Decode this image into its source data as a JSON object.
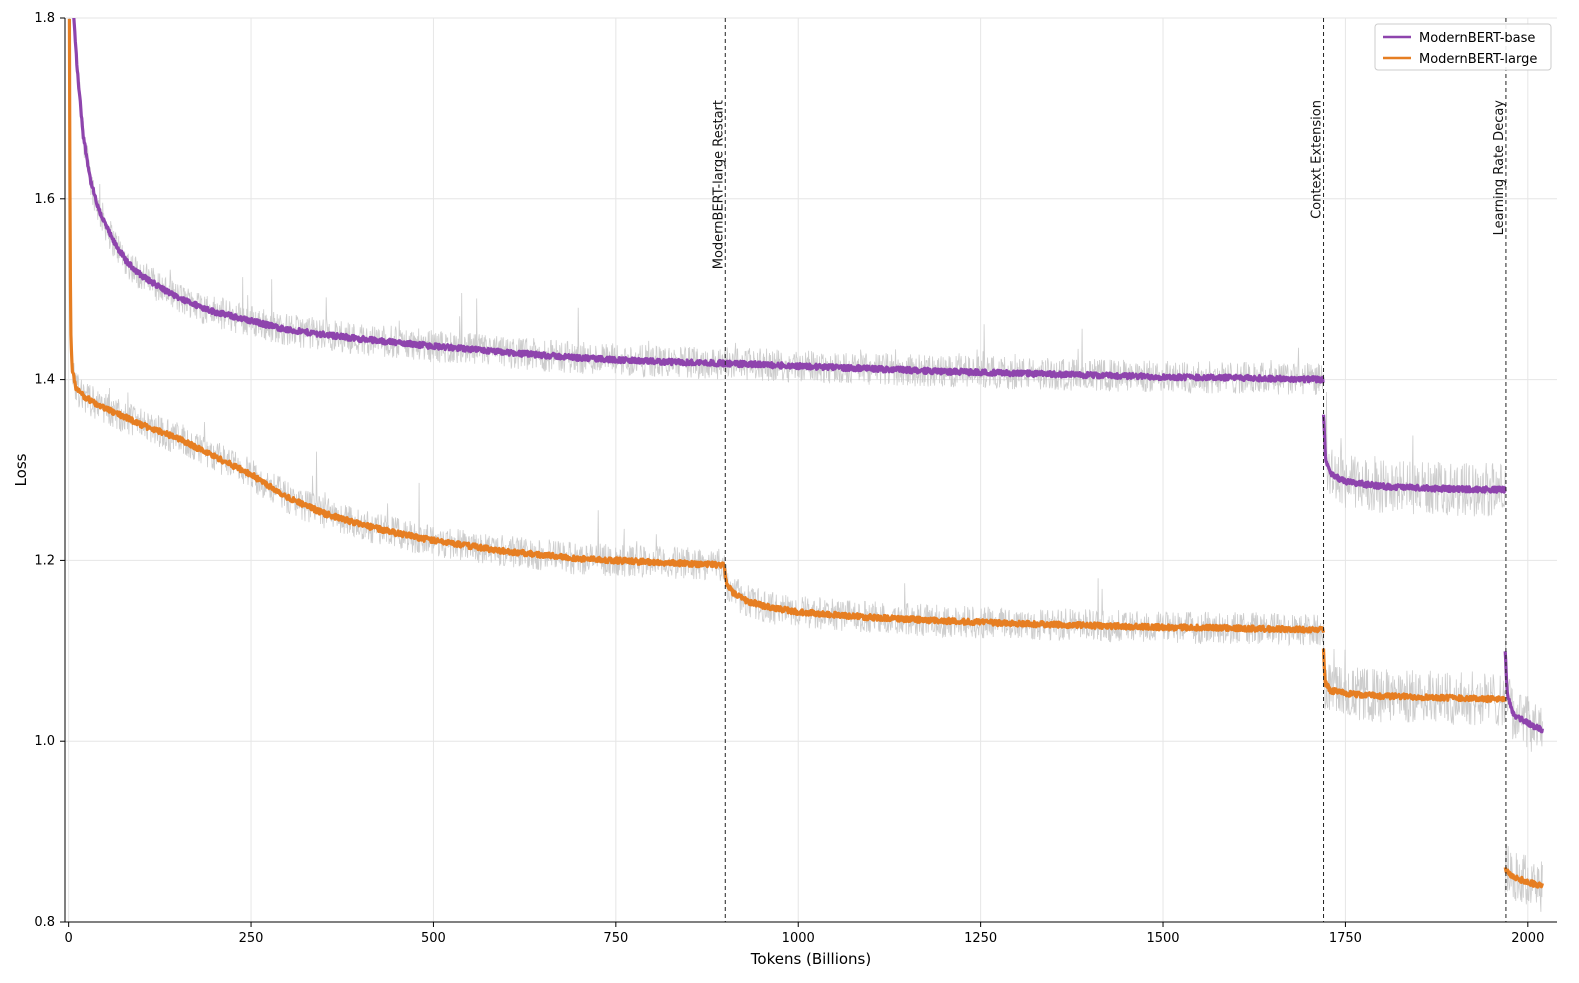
{
  "chart_data": {
    "type": "line",
    "xlabel": "Tokens (Billions)",
    "ylabel": "Loss",
    "xlim": [
      -5,
      2040
    ],
    "ylim": [
      0.8,
      1.8
    ],
    "xticks": [
      0,
      250,
      500,
      750,
      1000,
      1250,
      1500,
      1750,
      2000
    ],
    "yticks": [
      0.8,
      1.0,
      1.2,
      1.4,
      1.6,
      1.8
    ],
    "grid": true,
    "legend_position": "top-right",
    "colors": {
      "base": "#8e44ad",
      "large": "#e67e22",
      "raw": "#c8c8c8"
    },
    "series": [
      {
        "name": "ModernBERT-base",
        "color": "#8e44ad",
        "segments": [
          [
            [
              7,
              1.8
            ],
            [
              12,
              1.74
            ],
            [
              20,
              1.67
            ],
            [
              30,
              1.62
            ],
            [
              40,
              1.59
            ],
            [
              60,
              1.555
            ],
            [
              80,
              1.53
            ],
            [
              100,
              1.515
            ],
            [
              150,
              1.49
            ],
            [
              200,
              1.475
            ],
            [
              250,
              1.465
            ],
            [
              300,
              1.455
            ],
            [
              400,
              1.445
            ],
            [
              500,
              1.437
            ],
            [
              600,
              1.43
            ],
            [
              700,
              1.424
            ],
            [
              800,
              1.42
            ],
            [
              900,
              1.418
            ],
            [
              1000,
              1.415
            ],
            [
              1100,
              1.412
            ],
            [
              1200,
              1.409
            ],
            [
              1300,
              1.407
            ],
            [
              1400,
              1.405
            ],
            [
              1500,
              1.403
            ],
            [
              1600,
              1.402
            ],
            [
              1720,
              1.4
            ]
          ],
          [
            [
              1720,
              1.36
            ],
            [
              1723,
              1.31
            ],
            [
              1730,
              1.295
            ],
            [
              1750,
              1.287
            ],
            [
              1800,
              1.282
            ],
            [
              1850,
              1.28
            ],
            [
              1900,
              1.279
            ],
            [
              1969,
              1.278
            ]
          ],
          [
            [
              1969,
              1.1
            ],
            [
              1972,
              1.05
            ],
            [
              1980,
              1.03
            ],
            [
              1990,
              1.025
            ],
            [
              2005,
              1.018
            ],
            [
              2020,
              1.012
            ]
          ]
        ]
      },
      {
        "name": "ModernBERT-large",
        "color": "#e67e22",
        "segments": [
          [
            [
              1,
              1.8
            ],
            [
              2,
              1.55
            ],
            [
              3,
              1.45
            ],
            [
              5,
              1.41
            ],
            [
              10,
              1.39
            ],
            [
              20,
              1.382
            ],
            [
              40,
              1.372
            ],
            [
              60,
              1.365
            ],
            [
              100,
              1.35
            ],
            [
              150,
              1.335
            ],
            [
              200,
              1.315
            ],
            [
              250,
              1.295
            ],
            [
              300,
              1.27
            ],
            [
              350,
              1.252
            ],
            [
              400,
              1.24
            ],
            [
              450,
              1.23
            ],
            [
              500,
              1.222
            ],
            [
              600,
              1.21
            ],
            [
              700,
              1.202
            ],
            [
              800,
              1.198
            ],
            [
              898,
              1.195
            ]
          ],
          [
            [
              898,
              1.195
            ],
            [
              902,
              1.175
            ],
            [
              910,
              1.165
            ],
            [
              930,
              1.155
            ],
            [
              960,
              1.148
            ],
            [
              1000,
              1.143
            ],
            [
              1100,
              1.137
            ],
            [
              1200,
              1.133
            ],
            [
              1300,
              1.13
            ],
            [
              1400,
              1.128
            ],
            [
              1500,
              1.126
            ],
            [
              1600,
              1.125
            ],
            [
              1720,
              1.123
            ]
          ],
          [
            [
              1720,
              1.1
            ],
            [
              1722,
              1.065
            ],
            [
              1730,
              1.056
            ],
            [
              1760,
              1.052
            ],
            [
              1800,
              1.05
            ],
            [
              1900,
              1.048
            ],
            [
              1969,
              1.046
            ]
          ],
          [
            [
              1969,
              0.86
            ],
            [
              1975,
              0.852
            ],
            [
              1990,
              0.847
            ],
            [
              2005,
              0.843
            ],
            [
              2020,
              0.84
            ]
          ]
        ]
      }
    ],
    "annotations": [
      {
        "x": 900,
        "label": "ModernBERT-large Restart"
      },
      {
        "x": 1720,
        "label": "Context Extension"
      },
      {
        "x": 1970,
        "label": "Learning Rate Decay"
      }
    ]
  }
}
